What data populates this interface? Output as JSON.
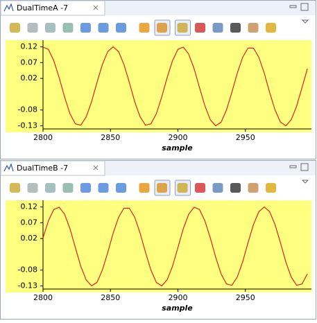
{
  "tabs": [
    "DualTimeA -7",
    "DualTimeB -7"
  ],
  "chart_data": [
    {
      "type": "line",
      "x_label": "sample",
      "color": "#e0201a",
      "background": "#ffff80",
      "xlim": [
        2800,
        2999
      ],
      "ylim": [
        -0.14,
        0.13
      ],
      "xticks": [
        2800,
        2850,
        2900,
        2950
      ],
      "yticks": [
        0.12,
        0.07,
        0.02,
        -0.08,
        -0.13
      ],
      "x": [
        2800,
        2804,
        2808,
        2812,
        2816,
        2820,
        2824,
        2828,
        2832,
        2836,
        2840,
        2844,
        2848,
        2852,
        2856,
        2860,
        2864,
        2868,
        2872,
        2876,
        2880,
        2884,
        2888,
        2892,
        2896,
        2900,
        2904,
        2908,
        2912,
        2916,
        2920,
        2924,
        2928,
        2932,
        2936,
        2940,
        2944,
        2948,
        2952,
        2956,
        2960,
        2964,
        2968,
        2972,
        2976,
        2980,
        2984,
        2988,
        2992,
        2996
      ],
      "values": [
        0.119,
        0.112,
        0.076,
        0.022,
        -0.039,
        -0.092,
        -0.124,
        -0.128,
        -0.102,
        -0.054,
        0.007,
        0.064,
        0.105,
        0.12,
        0.105,
        0.064,
        0.007,
        -0.054,
        -0.102,
        -0.128,
        -0.124,
        -0.092,
        -0.039,
        0.022,
        0.076,
        0.112,
        0.119,
        0.097,
        0.051,
        -0.009,
        -0.067,
        -0.111,
        -0.13,
        -0.119,
        -0.08,
        -0.024,
        0.036,
        0.087,
        0.116,
        0.116,
        0.087,
        0.037,
        -0.024,
        -0.08,
        -0.118,
        -0.13,
        -0.111,
        -0.068,
        -0.009,
        0.051
      ]
    },
    {
      "type": "line",
      "x_label": "sample",
      "color": "#e0201a",
      "background": "#ffff80",
      "xlim": [
        2800,
        2999
      ],
      "ylim": [
        -0.14,
        0.13
      ],
      "xticks": [
        2800,
        2850,
        2900,
        2950
      ],
      "yticks": [
        0.12,
        0.07,
        0.02,
        -0.08,
        -0.13
      ],
      "x": [
        2800,
        2804,
        2808,
        2812,
        2816,
        2820,
        2824,
        2828,
        2832,
        2836,
        2840,
        2844,
        2848,
        2852,
        2856,
        2860,
        2864,
        2868,
        2872,
        2876,
        2880,
        2884,
        2888,
        2892,
        2896,
        2900,
        2904,
        2908,
        2912,
        2916,
        2920,
        2924,
        2928,
        2932,
        2936,
        2940,
        2944,
        2948,
        2952,
        2956,
        2960,
        2964,
        2968,
        2972,
        2976,
        2980,
        2984,
        2988,
        2992,
        2996
      ],
      "values": [
        0.022,
        0.076,
        0.112,
        0.119,
        0.097,
        0.051,
        -0.009,
        -0.068,
        -0.111,
        -0.13,
        -0.119,
        -0.08,
        -0.024,
        0.037,
        0.087,
        0.116,
        0.116,
        0.087,
        0.037,
        -0.024,
        -0.08,
        -0.119,
        -0.13,
        -0.111,
        -0.068,
        -0.009,
        0.051,
        0.097,
        0.119,
        0.112,
        0.076,
        0.022,
        -0.039,
        -0.092,
        -0.124,
        -0.128,
        -0.102,
        -0.054,
        0.007,
        0.064,
        0.105,
        0.12,
        0.105,
        0.064,
        0.007,
        -0.054,
        -0.102,
        -0.128,
        -0.124,
        -0.092
      ]
    }
  ]
}
